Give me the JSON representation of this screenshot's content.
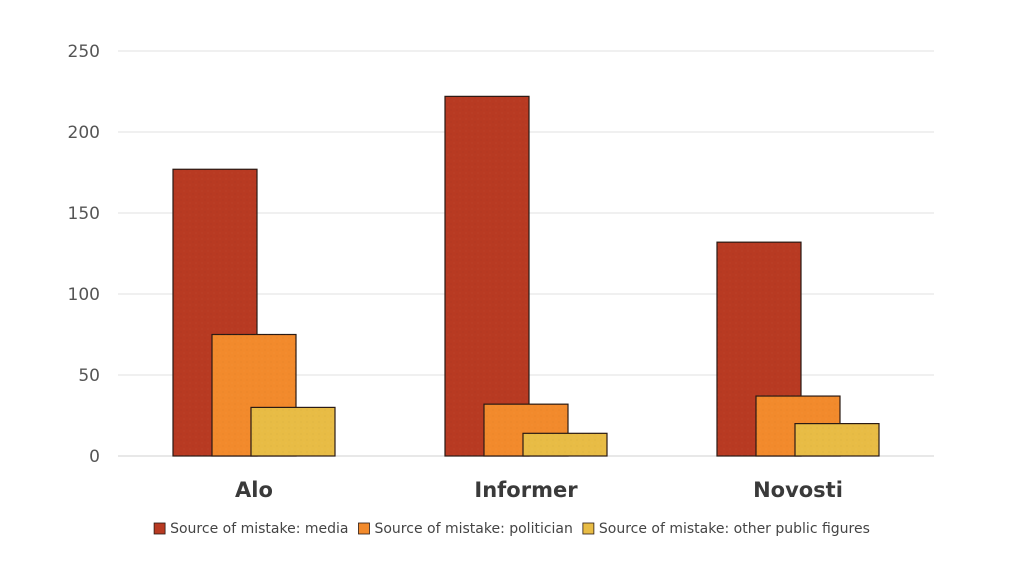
{
  "chart_data": {
    "type": "bar",
    "title": "",
    "xlabel": "",
    "ylabel": "",
    "categories": [
      "Alo",
      "Informer",
      "Novosti"
    ],
    "series": [
      {
        "name": "Source of mistake: media",
        "values": [
          177,
          222,
          132
        ],
        "color": "#b83a22"
      },
      {
        "name": "Source of mistake: politician",
        "values": [
          75,
          32,
          37
        ],
        "color": "#f28a2c"
      },
      {
        "name": "Source of mistake: other public figures",
        "values": [
          30,
          14,
          20
        ],
        "color": "#e8bc45"
      }
    ],
    "ylim": [
      0,
      250
    ],
    "yticks": [
      0,
      50,
      100,
      150,
      200,
      250
    ],
    "grid": true,
    "legend_position": "bottom-center"
  }
}
